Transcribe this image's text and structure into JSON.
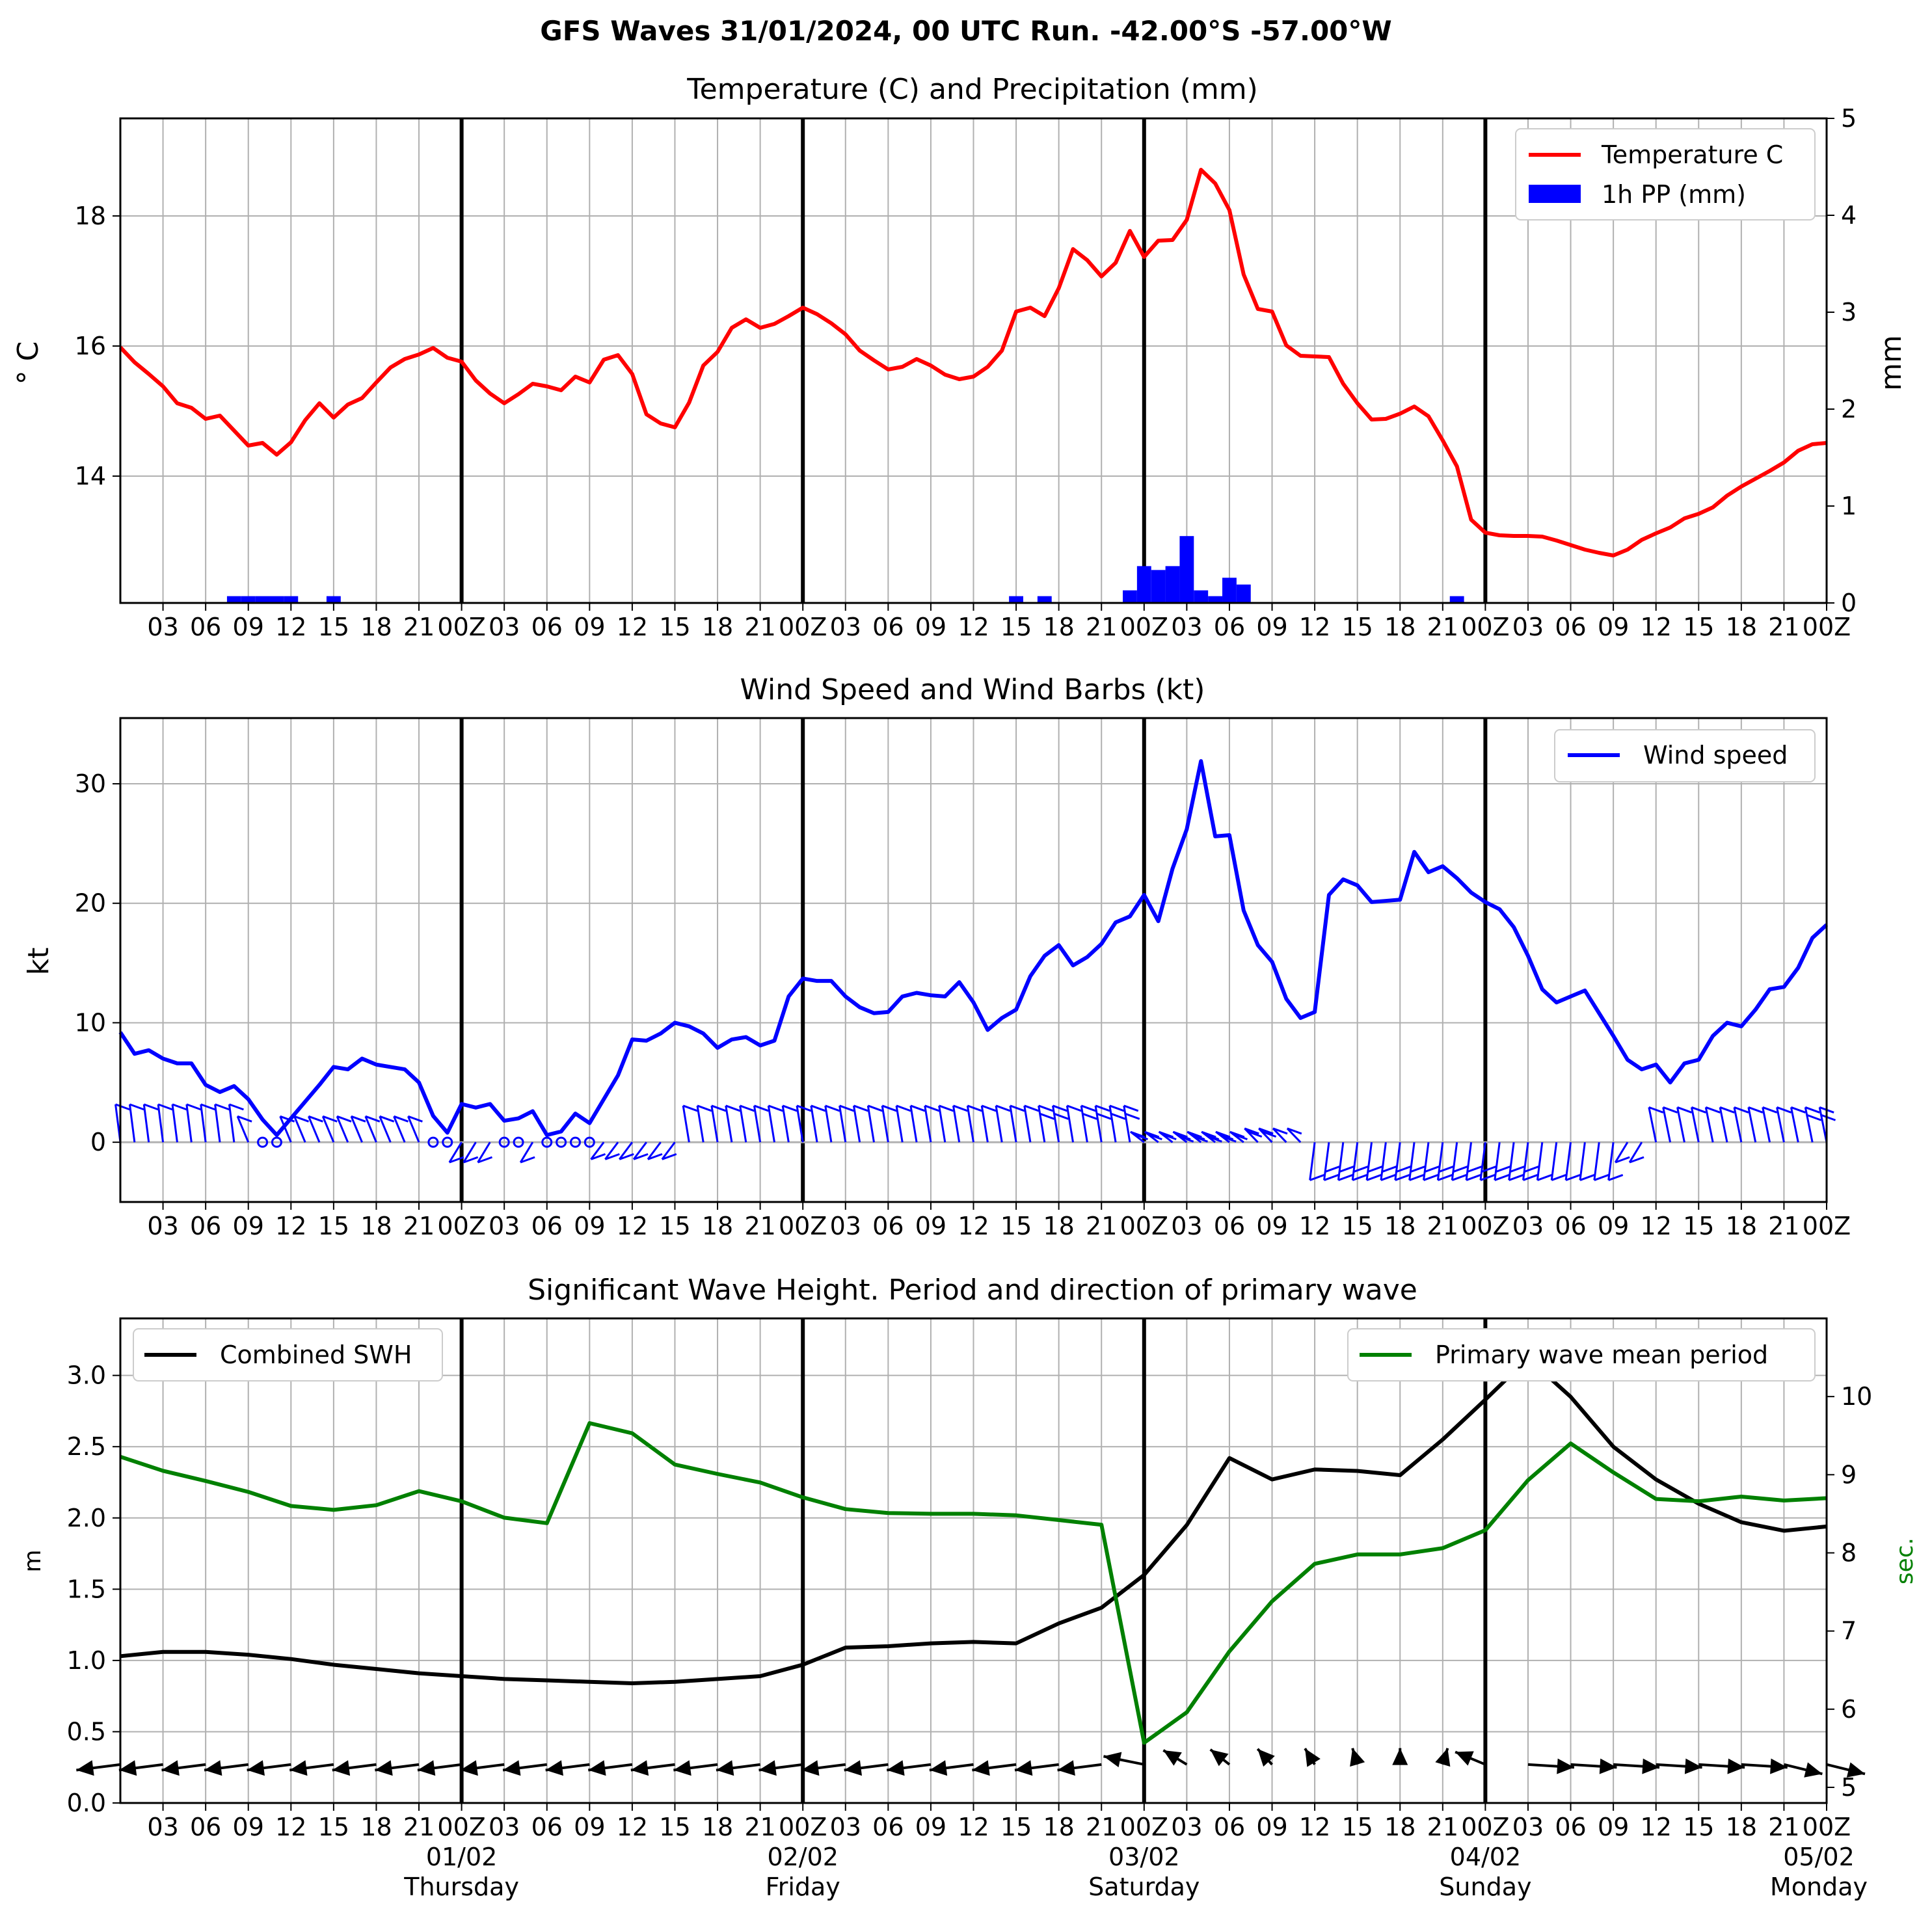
{
  "figure": {
    "suptitle": "GFS Waves 31/01/2024, 00 UTC Run. -42.00°S -57.00°W",
    "hour_tick_labels": [
      "03",
      "06",
      "09",
      "12",
      "15",
      "18",
      "21",
      "00Z",
      "03",
      "06",
      "09",
      "12",
      "15",
      "18",
      "21",
      "00Z",
      "03",
      "06",
      "09",
      "12",
      "15",
      "18",
      "21",
      "00Z",
      "03",
      "06",
      "09",
      "12",
      "15",
      "18",
      "21",
      "00Z",
      "03",
      "06",
      "09",
      "12",
      "15",
      "18",
      "21",
      "00Z"
    ],
    "day_labels": [
      {
        "hour": 24,
        "date": "01/02",
        "weekday": "Thursday"
      },
      {
        "hour": 48,
        "date": "02/02",
        "weekday": "Friday"
      },
      {
        "hour": 72,
        "date": "03/02",
        "weekday": "Saturday"
      },
      {
        "hour": 96,
        "date": "04/02",
        "weekday": "Sunday"
      },
      {
        "hour": 120,
        "date": "05/02",
        "weekday": "Monday"
      }
    ]
  },
  "chart_data": [
    {
      "type": "line",
      "title": "Temperature (C) and Precipitation (mm)",
      "xlabel": "",
      "ylabel": "$^\\circ$C",
      "ylabel_display": "° C",
      "ylabel_right": "mm",
      "x_unit": "hours after 31/01/2024 00 UTC",
      "xlim": [
        0,
        120
      ],
      "ylim": [
        12.05,
        19.5
      ],
      "ylim_right": [
        0,
        5
      ],
      "yticks": [
        14,
        16,
        18
      ],
      "yticks_right": [
        0,
        1,
        2,
        3,
        4,
        5
      ],
      "grid": true,
      "legend_position": "upper right",
      "series": [
        {
          "name": "Temperature C",
          "color": "#ff0000",
          "kind": "line",
          "x": [
            0,
            1,
            2,
            3,
            4,
            5,
            6,
            7,
            8,
            9,
            10,
            11,
            12,
            13,
            14,
            15,
            16,
            17,
            18,
            19,
            20,
            21,
            22,
            23,
            24,
            25,
            26,
            27,
            28,
            29,
            30,
            31,
            32,
            33,
            34,
            35,
            36,
            37,
            38,
            39,
            40,
            41,
            42,
            43,
            44,
            45,
            46,
            47,
            48,
            49,
            50,
            51,
            52,
            53,
            54,
            55,
            56,
            57,
            58,
            59,
            60,
            61,
            62,
            63,
            64,
            65,
            66,
            67,
            68,
            69,
            70,
            71,
            72,
            73,
            74,
            75,
            76,
            77,
            78,
            79,
            80,
            81,
            82,
            83,
            84,
            85,
            86,
            87,
            88,
            89,
            90,
            91,
            92,
            93,
            94,
            95,
            96,
            97,
            98,
            99,
            100,
            101,
            102,
            103,
            104,
            105,
            106,
            107,
            108,
            109,
            110,
            111,
            112,
            113,
            114,
            115,
            116,
            117,
            118,
            119,
            120
          ],
          "values": [
            15.98,
            15.75,
            15.57,
            15.38,
            15.12,
            15.05,
            14.88,
            14.93,
            14.7,
            14.47,
            14.51,
            14.33,
            14.52,
            14.86,
            15.12,
            14.9,
            15.1,
            15.2,
            15.44,
            15.67,
            15.8,
            15.87,
            15.97,
            15.82,
            15.76,
            15.47,
            15.27,
            15.12,
            15.26,
            15.42,
            15.38,
            15.32,
            15.53,
            15.44,
            15.79,
            15.86,
            15.57,
            14.95,
            14.81,
            14.75,
            15.13,
            15.7,
            15.91,
            16.28,
            16.41,
            16.28,
            16.34,
            16.46,
            16.59,
            16.49,
            16.35,
            16.18,
            15.93,
            15.78,
            15.64,
            15.68,
            15.8,
            15.7,
            15.56,
            15.49,
            15.53,
            15.68,
            15.93,
            16.53,
            16.59,
            16.46,
            16.89,
            17.49,
            17.32,
            17.07,
            17.28,
            17.77,
            17.37,
            17.62,
            17.63,
            17.94,
            18.71,
            18.5,
            18.09,
            17.1,
            16.57,
            16.53,
            16.01,
            15.85,
            15.84,
            15.83,
            15.42,
            15.12,
            14.87,
            14.88,
            14.96,
            15.07,
            14.92,
            14.55,
            14.15,
            13.33,
            13.13,
            13.09,
            13.08,
            13.08,
            13.07,
            13.01,
            12.94,
            12.87,
            12.82,
            12.78,
            12.87,
            13.02,
            13.12,
            13.21,
            13.35,
            13.42,
            13.52,
            13.7,
            13.84,
            13.96,
            14.08,
            14.21,
            14.39,
            14.49,
            14.51
          ]
        },
        {
          "name": "1h PP (mm)",
          "color": "#0000ff",
          "kind": "bar",
          "axis": "right",
          "x": [
            8,
            9,
            10,
            11,
            12,
            15,
            63,
            65,
            71,
            72,
            73,
            74,
            75,
            76,
            77,
            78,
            79,
            94
          ],
          "values": [
            0.07,
            0.07,
            0.07,
            0.07,
            0.07,
            0.07,
            0.07,
            0.07,
            0.13,
            0.38,
            0.34,
            0.38,
            0.69,
            0.13,
            0.07,
            0.26,
            0.19,
            0.07
          ]
        }
      ]
    },
    {
      "type": "line",
      "title": "Wind Speed and Wind Barbs (kt)",
      "xlabel": "",
      "ylabel": "kt",
      "xlim": [
        0,
        120
      ],
      "ylim": [
        -5,
        35.5
      ],
      "yticks": [
        0,
        10,
        20,
        30
      ],
      "grid": true,
      "legend_position": "upper right",
      "series": [
        {
          "name": "Wind speed",
          "color": "#0000ff",
          "x": [
            0,
            1,
            2,
            3,
            4,
            5,
            6,
            7,
            8,
            9,
            10,
            11,
            12,
            13,
            14,
            15,
            16,
            17,
            18,
            19,
            20,
            21,
            22,
            23,
            24,
            25,
            26,
            27,
            28,
            29,
            30,
            31,
            32,
            33,
            34,
            35,
            36,
            37,
            38,
            39,
            40,
            41,
            42,
            43,
            44,
            45,
            46,
            47,
            48,
            49,
            50,
            51,
            52,
            53,
            54,
            55,
            56,
            57,
            58,
            59,
            60,
            61,
            62,
            63,
            64,
            65,
            66,
            67,
            68,
            69,
            70,
            71,
            72,
            73,
            74,
            75,
            76,
            77,
            78,
            79,
            80,
            81,
            82,
            83,
            84,
            85,
            86,
            87,
            88,
            89,
            90,
            91,
            92,
            93,
            94,
            95,
            96,
            97,
            98,
            99,
            100,
            101,
            102,
            103,
            104,
            105,
            106,
            107,
            108,
            109,
            110,
            111,
            112,
            113,
            114,
            115,
            116,
            117,
            118,
            119,
            120
          ],
          "values": [
            9.2,
            7.4,
            7.7,
            7.0,
            6.6,
            6.6,
            4.8,
            4.2,
            4.7,
            3.6,
            1.9,
            0.6,
            2.0,
            3.4,
            4.8,
            6.3,
            6.1,
            7.0,
            6.5,
            6.3,
            6.1,
            5.0,
            2.2,
            0.8,
            3.2,
            2.9,
            3.2,
            1.8,
            2.0,
            2.6,
            0.6,
            0.9,
            2.4,
            1.6,
            3.6,
            5.6,
            8.6,
            8.5,
            9.1,
            10.0,
            9.7,
            9.1,
            7.9,
            8.6,
            8.8,
            8.1,
            8.5,
            12.2,
            13.7,
            13.5,
            13.5,
            12.2,
            11.3,
            10.8,
            10.9,
            12.2,
            12.5,
            12.3,
            12.2,
            13.4,
            11.7,
            9.4,
            10.4,
            11.1,
            13.9,
            15.6,
            16.5,
            14.8,
            15.5,
            16.6,
            18.4,
            18.9,
            20.7,
            18.5,
            22.9,
            26.2,
            31.9,
            25.6,
            25.7,
            19.4,
            16.5,
            15.1,
            12.0,
            10.4,
            10.9,
            20.7,
            22.0,
            21.5,
            20.1,
            20.2,
            20.3,
            24.3,
            22.6,
            23.1,
            22.1,
            20.9,
            20.1,
            19.5,
            18.0,
            15.6,
            12.8,
            11.7,
            12.2,
            12.7,
            10.8,
            8.9,
            6.9,
            6.1,
            6.5,
            5.0,
            6.6,
            6.9,
            8.9,
            10.0,
            9.7,
            11.1,
            12.8,
            13.0,
            14.6,
            17.1,
            18.2
          ]
        }
      ],
      "wind_barbs_note": "barbs drawn along y=0 every hour; open circles where calm"
    },
    {
      "type": "line",
      "title": "Significant Wave Height. Period and direction of primary wave",
      "xlabel": "",
      "ylabel": "m",
      "ylabel_right": "sec.",
      "xlim": [
        0,
        120
      ],
      "ylim": [
        0,
        3.4
      ],
      "ylim_right": [
        4.8,
        11.0
      ],
      "yticks": [
        0.0,
        0.5,
        1.0,
        1.5,
        2.0,
        2.5,
        3.0
      ],
      "yticks_right": [
        5,
        6,
        7,
        8,
        9,
        10
      ],
      "grid": true,
      "legend_position": "upper left (Combined SWH), upper right (Primary wave mean period)",
      "series": [
        {
          "name": "Combined SWH",
          "color": "#000000",
          "x": [
            0,
            3,
            6,
            9,
            12,
            15,
            18,
            21,
            24,
            27,
            30,
            33,
            36,
            39,
            42,
            45,
            48,
            51,
            54,
            57,
            60,
            63,
            66,
            69,
            72,
            75,
            78,
            81,
            84,
            87,
            90,
            93,
            96,
            99,
            102,
            105,
            108,
            111,
            114,
            117,
            120
          ],
          "values": [
            1.03,
            1.06,
            1.06,
            1.04,
            1.01,
            0.97,
            0.94,
            0.91,
            0.89,
            0.87,
            0.86,
            0.85,
            0.84,
            0.85,
            0.87,
            0.89,
            0.97,
            1.09,
            1.1,
            1.12,
            1.13,
            1.12,
            1.26,
            1.37,
            1.6,
            1.95,
            2.42,
            2.27,
            2.34,
            2.33,
            2.3,
            2.55,
            2.83,
            3.12,
            2.85,
            2.5,
            2.27,
            2.1,
            1.97,
            1.91,
            1.94
          ]
        },
        {
          "name": "Primary wave mean period",
          "color": "#008000",
          "axis": "right",
          "x": [
            0,
            3,
            6,
            9,
            12,
            15,
            18,
            21,
            24,
            27,
            30,
            33,
            36,
            39,
            42,
            45,
            48,
            51,
            54,
            57,
            60,
            63,
            66,
            69,
            72,
            75,
            78,
            81,
            84,
            87,
            90,
            93,
            96,
            99,
            102,
            105,
            108,
            111,
            114,
            117,
            120
          ],
          "values": [
            9.23,
            9.05,
            8.92,
            8.78,
            8.6,
            8.55,
            8.61,
            8.79,
            8.66,
            8.45,
            8.38,
            9.66,
            9.53,
            9.13,
            9.01,
            8.9,
            8.71,
            8.56,
            8.51,
            8.5,
            8.5,
            8.48,
            8.42,
            8.36,
            5.57,
            5.96,
            6.74,
            7.38,
            7.86,
            7.98,
            7.98,
            8.06,
            8.29,
            8.93,
            9.4,
            9.03,
            8.69,
            8.66,
            8.72,
            8.67,
            8.7
          ]
        }
      ],
      "direction_arrows_note": "primary wave direction arrows drawn along y≈0.25 m every 3 h"
    }
  ]
}
